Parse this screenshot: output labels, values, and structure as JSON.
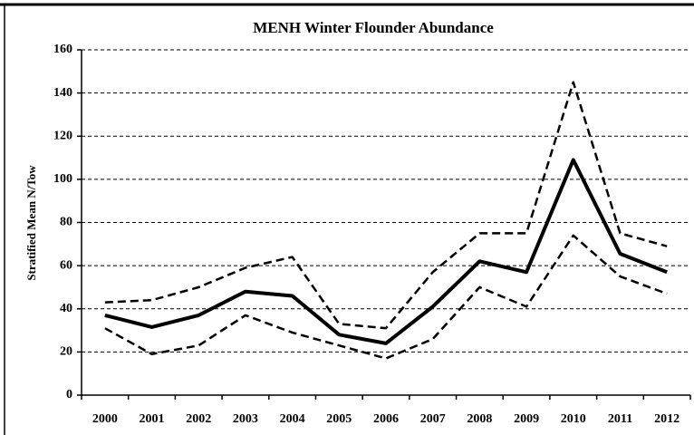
{
  "chart_data": {
    "type": "line",
    "title": "MENH Winter Flounder Abundance",
    "y_label": "Stratified Mean N/Tow",
    "categories": [
      "2000",
      "2001",
      "2002",
      "2003",
      "2004",
      "2005",
      "2006",
      "2007",
      "2008",
      "2009",
      "2010",
      "2011",
      "2012"
    ],
    "series": [
      {
        "color": "#000000",
        "line_style": "solid",
        "values": [
          37,
          31.5,
          37,
          48,
          46,
          28,
          24,
          41,
          62,
          57,
          109,
          65.5,
          57
        ]
      },
      {
        "color": "#000000",
        "line_style": "dashed",
        "values": [
          43,
          44,
          50,
          59,
          64,
          33,
          31,
          57,
          75,
          75,
          145,
          75,
          69
        ]
      },
      {
        "color": "#000000",
        "line_style": "dashed",
        "values": [
          31,
          19,
          23,
          37,
          29,
          23,
          17,
          26,
          50,
          41,
          74,
          55,
          47
        ]
      }
    ],
    "ylim": [
      0,
      160
    ],
    "yticks": [
      0,
      20,
      40,
      60,
      80,
      100,
      120,
      140,
      160
    ],
    "grid": true
  }
}
